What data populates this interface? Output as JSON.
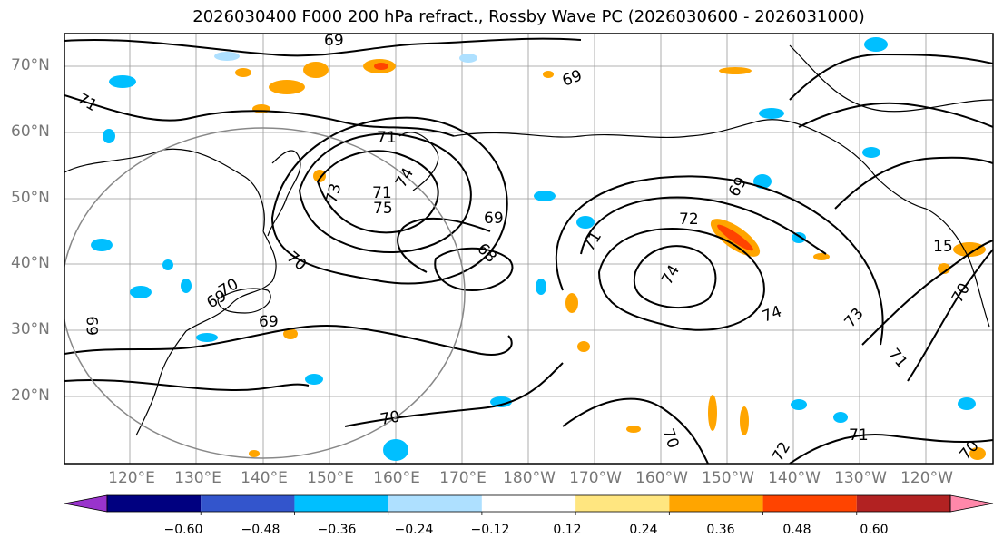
{
  "title": "2026030400 F000 200 hPa refract., Rossby Wave PC (2026030600 - 2026031000)",
  "lat_labels": [
    "70°N",
    "60°N",
    "50°N",
    "40°N",
    "30°N",
    "20°N"
  ],
  "lon_labels": [
    "120°E",
    "130°E",
    "140°E",
    "150°E",
    "160°E",
    "170°E",
    "180°W",
    "170°W",
    "160°W",
    "150°W",
    "140°W",
    "130°W",
    "120°W"
  ],
  "contour_labels": [
    "69",
    "69",
    "71",
    "71",
    "73",
    "71",
    "75",
    "74",
    "69",
    "68",
    "70",
    "69",
    "69",
    "72",
    "71",
    "74",
    "74",
    "69",
    "73",
    "71",
    "70",
    "70",
    "69",
    "70",
    "71",
    "72",
    "70",
    "15",
    "70"
  ],
  "colorbar": {
    "ticks": [
      "−0.60",
      "−0.48",
      "−0.36",
      "−0.24",
      "−0.12",
      "0.12",
      "0.24",
      "0.36",
      "0.48",
      "0.60"
    ],
    "colors": [
      "#9933cc",
      "#000080",
      "#3355cc",
      "#00bfff",
      "#aee0ff",
      "#ffffff",
      "#ffe680",
      "#ffa500",
      "#ff4400",
      "#b22222",
      "#ff88aa"
    ]
  }
}
